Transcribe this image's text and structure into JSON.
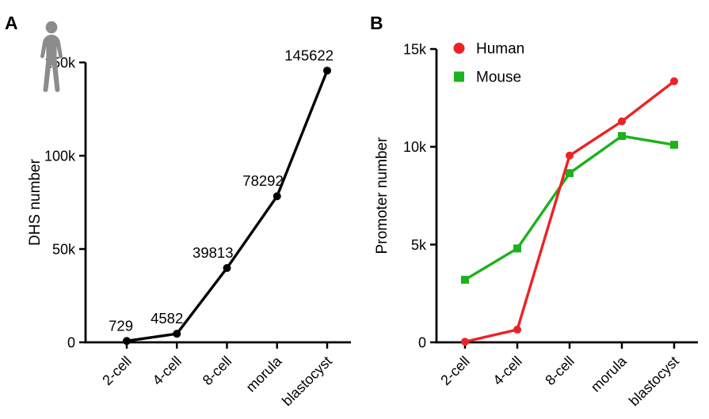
{
  "figure": {
    "background": "#ffffff",
    "panels": [
      {
        "label": "A",
        "icon": "human-silhouette-icon"
      },
      {
        "label": "B"
      }
    ]
  },
  "colors": {
    "axis": "#000000",
    "human_series": "#ED2224",
    "mouse_series": "#1CB21C",
    "dhs_series": "#000000",
    "icon_gray": "#8C8C8C"
  },
  "chart_data": [
    {
      "type": "line",
      "panel": "A",
      "title": "",
      "xlabel": "",
      "ylabel": "DHS number",
      "categories": [
        "2-cell",
        "4-cell",
        "8-cell",
        "morula",
        "blastocyst"
      ],
      "series": [
        {
          "name": "DHS",
          "color": "#000000",
          "marker": "circle",
          "values": [
            729,
            4582,
            39813,
            78292,
            145622
          ],
          "point_labels": [
            "729",
            "4582",
            "39813",
            "78292",
            "145622"
          ]
        }
      ],
      "ylim": [
        0,
        150000
      ],
      "yticks": [
        {
          "value": 0,
          "label": "0"
        },
        {
          "value": 50000,
          "label": "50k"
        },
        {
          "value": 100000,
          "label": "100k"
        },
        {
          "value": 150000,
          "label": "150k"
        }
      ],
      "grid": false,
      "legend": null
    },
    {
      "type": "line",
      "panel": "B",
      "title": "",
      "xlabel": "",
      "ylabel": "Promoter number",
      "categories": [
        "2-cell",
        "4-cell",
        "8-cell",
        "morula",
        "blastocyst"
      ],
      "series": [
        {
          "name": "Human",
          "color": "#ED2224",
          "marker": "circle",
          "values": [
            30,
            650,
            9550,
            11300,
            13350
          ]
        },
        {
          "name": "Mouse",
          "color": "#1CB21C",
          "marker": "square",
          "values": [
            3200,
            4800,
            8650,
            10550,
            10100
          ]
        }
      ],
      "ylim": [
        0,
        15000
      ],
      "yticks": [
        {
          "value": 0,
          "label": "0"
        },
        {
          "value": 5000,
          "label": "5k"
        },
        {
          "value": 10000,
          "label": "10k"
        },
        {
          "value": 15000,
          "label": "15k"
        }
      ],
      "grid": false,
      "legend": {
        "position": "top-left-inside",
        "entries": [
          "Human",
          "Mouse"
        ]
      }
    }
  ]
}
